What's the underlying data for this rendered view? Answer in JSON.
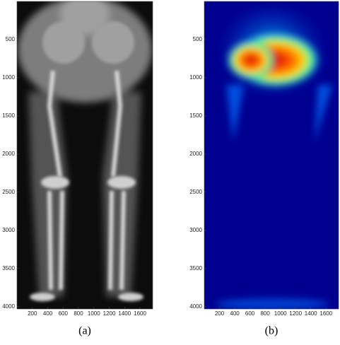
{
  "chart_data": [
    {
      "type": "image",
      "caption": "(a)",
      "xlim": [
        0,
        1765
      ],
      "ylim": [
        4030,
        0
      ],
      "xticks": [
        200,
        400,
        600,
        800,
        1000,
        1200,
        1400,
        1600
      ],
      "yticks": [
        500,
        1000,
        1500,
        2000,
        2500,
        3000,
        3500,
        4000
      ]
    },
    {
      "type": "image",
      "caption": "(b)",
      "xlim": [
        0,
        1765
      ],
      "ylim": [
        4030,
        0
      ],
      "xticks": [
        200,
        400,
        600,
        800,
        1000,
        1200,
        1400,
        1600
      ],
      "yticks": [
        500,
        1000,
        1500,
        2000,
        2500,
        3000,
        3500,
        4000
      ]
    }
  ]
}
